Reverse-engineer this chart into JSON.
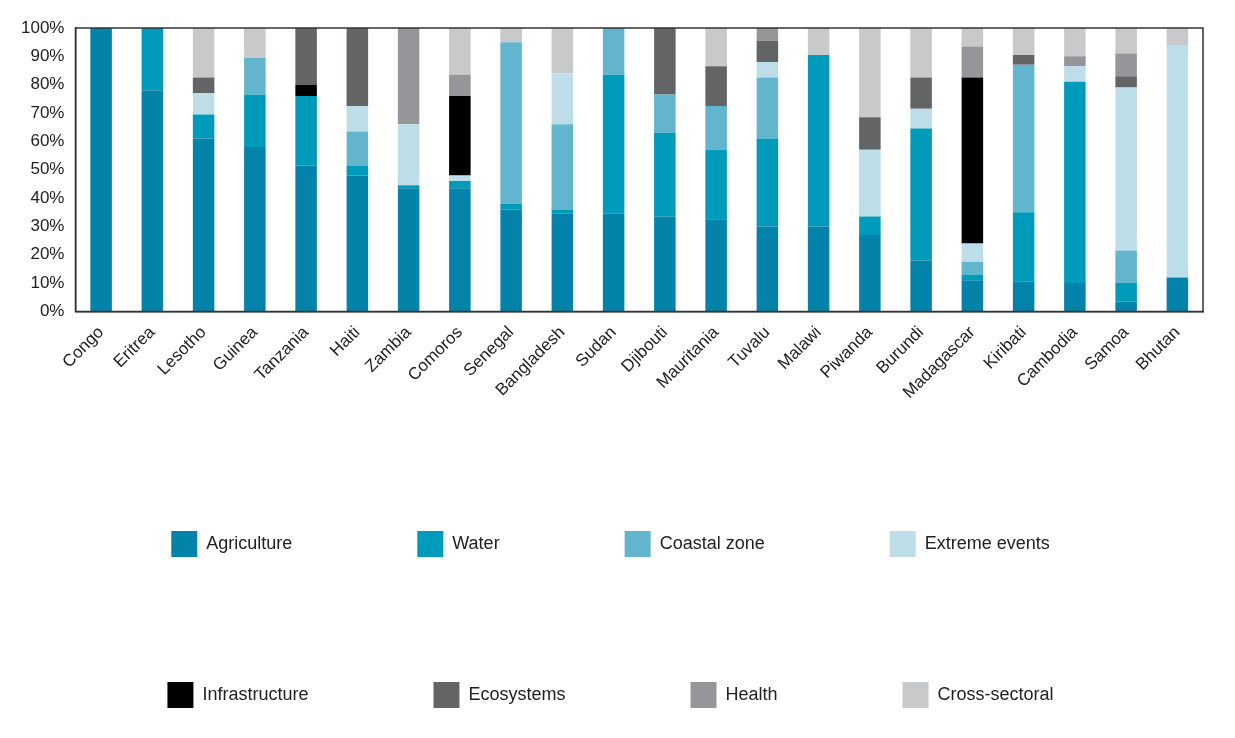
{
  "chart_data": {
    "type": "bar",
    "stacked": true,
    "categories": [
      "Congo",
      "Eritrea",
      "Lesotho",
      "Guinea",
      "Tanzania",
      "Haiti",
      "Zambia",
      "Comoros",
      "Senegal",
      "Bangladesh",
      "Sudan",
      "Djibouti",
      "Mauritania",
      "Tuvalu",
      "Malawi",
      "Piwanda",
      "Burundi",
      "Madagascar",
      "Kiribati",
      "Cambodia",
      "Samoa",
      "Bhutan"
    ],
    "series": [
      {
        "name": "Agriculture",
        "color": "#0383aa",
        "values": [
          100,
          78,
          61,
          58,
          51.5,
          48,
          43.5,
          43.5,
          36,
          34.5,
          34.5,
          33.5,
          32.5,
          30,
          30,
          27,
          18,
          11,
          10.5,
          10,
          3.5,
          12
        ]
      },
      {
        "name": "Water",
        "color": "#009bbb",
        "values": [
          0,
          22,
          8.5,
          18.5,
          24.5,
          3.5,
          1,
          2.5,
          2,
          1.5,
          49,
          29.5,
          24.5,
          31,
          60.5,
          6.5,
          46.5,
          2,
          24.5,
          71,
          6.5,
          0
        ]
      },
      {
        "name": "Coastal zone",
        "color": "#63b4cd",
        "values": [
          0,
          0,
          0,
          13,
          0,
          12,
          0,
          0,
          57,
          30,
          16.5,
          13.5,
          15.5,
          21.5,
          0,
          0,
          0,
          4.5,
          52,
          0,
          11.5,
          0
        ]
      },
      {
        "name": "Extreme events",
        "color": "#bddee8",
        "values": [
          0,
          0,
          7.5,
          0,
          0,
          9,
          21.5,
          2,
          0,
          18,
          0,
          0,
          0,
          5.5,
          0,
          23.5,
          7,
          6.5,
          0,
          5.5,
          57.5,
          82
        ]
      },
      {
        "name": "Infrastructure",
        "color": "#000000",
        "values": [
          0,
          0,
          0,
          0,
          4,
          0,
          0,
          28,
          0,
          0,
          0,
          0,
          0,
          0,
          0,
          0,
          0,
          58.5,
          0,
          0,
          0,
          0
        ]
      },
      {
        "name": "Ecosystems",
        "color": "#636466",
        "values": [
          0,
          0,
          5.5,
          0,
          20,
          27.5,
          0,
          0,
          0,
          0,
          0,
          23.5,
          14,
          7.5,
          0,
          11.5,
          11,
          0,
          3.5,
          0,
          4,
          0
        ]
      },
      {
        "name": "Health",
        "color": "#959699",
        "values": [
          0,
          0,
          0,
          0,
          0,
          0,
          34,
          7.5,
          0,
          0,
          0,
          0,
          0,
          4.5,
          0,
          0,
          0,
          11,
          0,
          3.5,
          8,
          0
        ]
      },
      {
        "name": "Cross-sectoral",
        "color": "#c8c9cb",
        "values": [
          0,
          0,
          17.5,
          10.5,
          0,
          0,
          0,
          16.5,
          5,
          16,
          0,
          0,
          13.5,
          0,
          9.5,
          31.5,
          17.5,
          6.5,
          9.5,
          10,
          9,
          6
        ]
      }
    ],
    "ylim": [
      0,
      100
    ],
    "yticks": [
      {
        "value": 0,
        "label": "0%"
      },
      {
        "value": 10,
        "label": "10%"
      },
      {
        "value": 20,
        "label": "20%"
      },
      {
        "value": 30,
        "label": "30%"
      },
      {
        "value": 40,
        "label": "40%"
      },
      {
        "value": 50,
        "label": "50%"
      },
      {
        "value": 60,
        "label": "60%"
      },
      {
        "value": 70,
        "label": "70%"
      },
      {
        "value": 80,
        "label": "80%"
      },
      {
        "value": 90,
        "label": "90%"
      },
      {
        "value": 100,
        "label": "100%"
      }
    ],
    "grid": false,
    "legend": "bottom"
  }
}
